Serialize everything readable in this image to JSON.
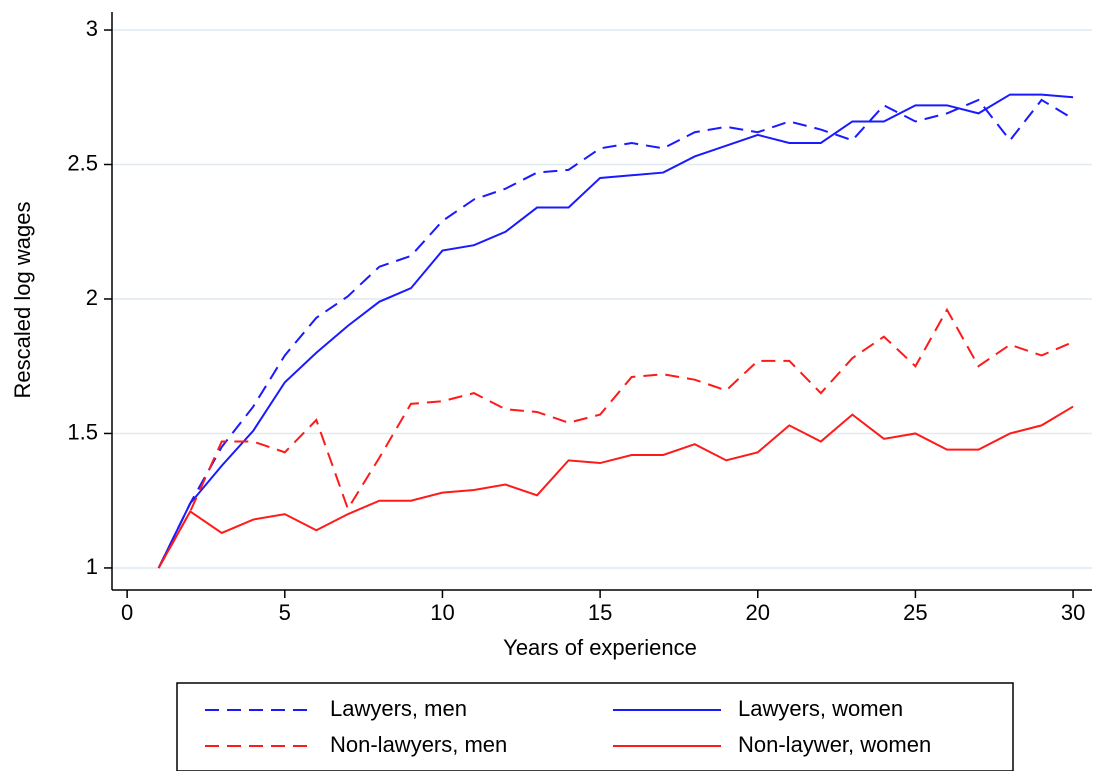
{
  "chart_data": {
    "type": "line",
    "xlabel": "Years of experience",
    "ylabel": "Rescaled log wages",
    "x": [
      1,
      2,
      3,
      4,
      5,
      6,
      7,
      8,
      9,
      10,
      11,
      12,
      13,
      14,
      15,
      16,
      17,
      18,
      19,
      20,
      21,
      22,
      23,
      24,
      25,
      26,
      27,
      28,
      29,
      30
    ],
    "series": [
      {
        "name": "Lawyers, men",
        "color": "#1a1aff",
        "dash": true,
        "values": [
          1.0,
          1.24,
          1.45,
          1.6,
          1.79,
          1.93,
          2.01,
          2.12,
          2.16,
          2.29,
          2.37,
          2.41,
          2.47,
          2.48,
          2.56,
          2.58,
          2.56,
          2.62,
          2.64,
          2.62,
          2.66,
          2.63,
          2.59,
          2.72,
          2.66,
          2.69,
          2.74,
          2.59,
          2.74,
          2.67
        ]
      },
      {
        "name": "Lawyers, women",
        "color": "#1a1aff",
        "dash": false,
        "values": [
          1.0,
          1.24,
          1.38,
          1.51,
          1.69,
          1.8,
          1.9,
          1.99,
          2.04,
          2.18,
          2.2,
          2.25,
          2.34,
          2.34,
          2.45,
          2.46,
          2.47,
          2.53,
          2.57,
          2.61,
          2.58,
          2.58,
          2.66,
          2.66,
          2.72,
          2.72,
          2.69,
          2.76,
          2.76,
          2.75
        ]
      },
      {
        "name": "Non-lawyers, men",
        "color": "#ff1a1a",
        "dash": true,
        "values": [
          1.0,
          1.21,
          1.47,
          1.47,
          1.43,
          1.55,
          1.22,
          1.41,
          1.61,
          1.62,
          1.65,
          1.59,
          1.58,
          1.54,
          1.57,
          1.71,
          1.72,
          1.7,
          1.66,
          1.77,
          1.77,
          1.65,
          1.78,
          1.86,
          1.75,
          1.96,
          1.75,
          1.83,
          1.79,
          1.84
        ]
      },
      {
        "name": "Non-laywer, women",
        "color": "#ff1a1a",
        "dash": false,
        "values": [
          1.0,
          1.21,
          1.13,
          1.18,
          1.2,
          1.14,
          1.2,
          1.25,
          1.25,
          1.28,
          1.29,
          1.31,
          1.27,
          1.4,
          1.39,
          1.42,
          1.42,
          1.46,
          1.4,
          1.43,
          1.53,
          1.47,
          1.57,
          1.48,
          1.5,
          1.44,
          1.44,
          1.5,
          1.53,
          1.6
        ]
      }
    ],
    "xlim": [
      -0.48,
      30.6
    ],
    "ylim": [
      0.918,
      3.067
    ],
    "xticks": [
      0,
      5,
      10,
      15,
      20,
      25,
      30
    ],
    "yticks": [
      1,
      1.5,
      2,
      2.5,
      3
    ],
    "grid": true,
    "legend": "bottom"
  }
}
